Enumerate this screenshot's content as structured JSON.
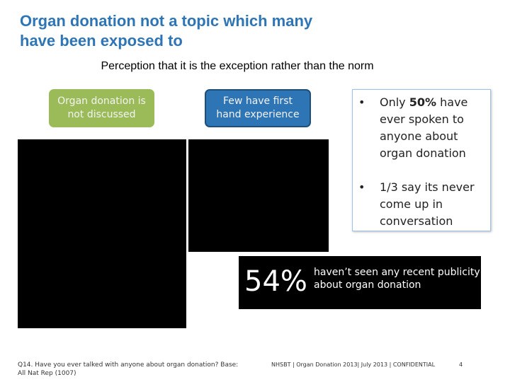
{
  "header": {
    "title_lines": [
      "Organ donation not a topic which many",
      "have been exposed to"
    ],
    "subtitle": "Perception that it is the exception rather than the norm"
  },
  "boxes": [
    "Organ donation is not discussed",
    "Few have first hand experience"
  ],
  "bullets": [
    {
      "before": "Only ",
      "bold": "50%",
      "after": " have ever spoken to anyone about organ donation"
    },
    {
      "before": "1/3 say its never come up in conversation"
    }
  ],
  "stat": {
    "value": "54%",
    "text": "haven’t seen any recent publicity about organ donation"
  },
  "footer": {
    "source": "Q14. Have you ever talked with anyone about organ donation? Base: All Nat Rep (1007)",
    "center": "NHSBT | Organ Donation 2013| July 2013 | CONFIDENTIAL",
    "page": "4"
  }
}
